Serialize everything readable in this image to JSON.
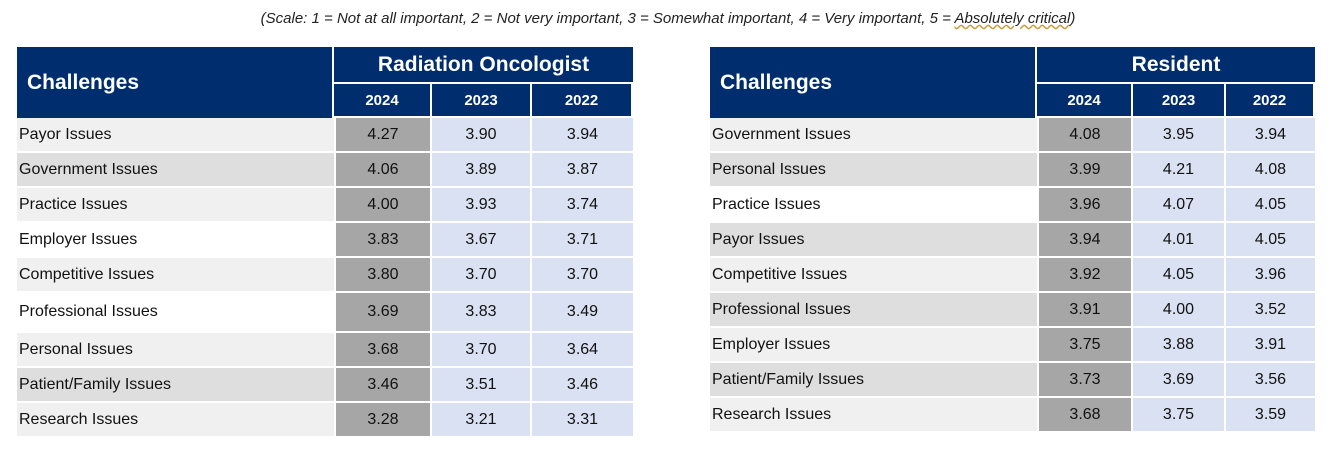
{
  "scale_note": {
    "prefix": "(Scale: 1 = Not at all important, 2 = Not very important, 3 = Somewhat important, 4 = Very important, 5 = ",
    "emphasis": "Absolutely critical",
    "suffix": ")"
  },
  "colors": {
    "header_bg": "#002d6e",
    "col_2024_bg": "#a6a6a6",
    "col_prev_bg": "#d9e1f2",
    "row_light": "#f0f0f0",
    "row_dark": "#dedede"
  },
  "tables": [
    {
      "challenges_header": "Challenges",
      "group_header": "Radiation Oncologist",
      "years": [
        "2024",
        "2023",
        "2022"
      ],
      "rows": [
        {
          "label": "Payor Issues",
          "values": [
            "4.27",
            "3.90",
            "3.94"
          ]
        },
        {
          "label": "Government Issues",
          "values": [
            "4.06",
            "3.89",
            "3.87"
          ]
        },
        {
          "label": "Practice Issues",
          "values": [
            "4.00",
            "3.93",
            "3.74"
          ]
        },
        {
          "label": "Employer Issues",
          "values": [
            "3.83",
            "3.67",
            "3.71"
          ]
        },
        {
          "label": "Competitive Issues",
          "values": [
            "3.80",
            "3.70",
            "3.70"
          ]
        },
        {
          "label": "Professional Issues",
          "values": [
            "3.69",
            "3.83",
            "3.49"
          ]
        },
        {
          "label": "Personal Issues",
          "values": [
            "3.68",
            "3.70",
            "3.64"
          ]
        },
        {
          "label": "Patient/Family Issues",
          "values": [
            "3.46",
            "3.51",
            "3.46"
          ]
        },
        {
          "label": "Research Issues",
          "values": [
            "3.28",
            "3.21",
            "3.31"
          ]
        }
      ]
    },
    {
      "challenges_header": "Challenges",
      "group_header": "Resident",
      "years": [
        "2024",
        "2023",
        "2022"
      ],
      "rows": [
        {
          "label": "Government Issues",
          "values": [
            "4.08",
            "3.95",
            "3.94"
          ]
        },
        {
          "label": "Personal Issues",
          "values": [
            "3.99",
            "4.21",
            "4.08"
          ]
        },
        {
          "label": "Practice Issues",
          "values": [
            "3.96",
            "4.07",
            "4.05"
          ]
        },
        {
          "label": "Payor Issues",
          "values": [
            "3.94",
            "4.01",
            "4.05"
          ]
        },
        {
          "label": "Competitive Issues",
          "values": [
            "3.92",
            "4.05",
            "3.96"
          ]
        },
        {
          "label": "Professional Issues",
          "values": [
            "3.91",
            "4.00",
            "3.52"
          ]
        },
        {
          "label": "Employer Issues",
          "values": [
            "3.75",
            "3.88",
            "3.91"
          ]
        },
        {
          "label": "Patient/Family Issues",
          "values": [
            "3.73",
            "3.69",
            "3.56"
          ]
        },
        {
          "label": "Research Issues",
          "values": [
            "3.68",
            "3.75",
            "3.59"
          ]
        }
      ]
    }
  ]
}
